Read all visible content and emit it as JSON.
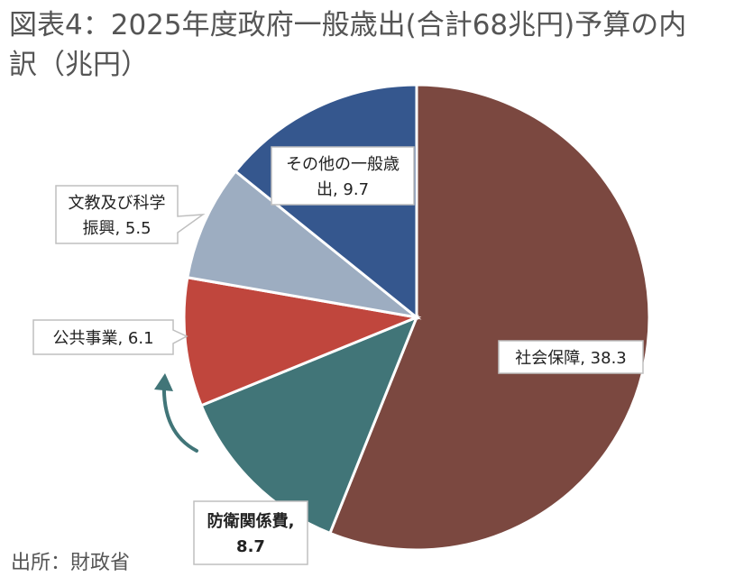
{
  "title_line1": "図表4：2025年度政府一般歳出(合計68兆円)予算の内",
  "title_line2": "訳（兆円）",
  "source": "出所：財政省",
  "colors": {
    "social_security": "#7b4840",
    "defense": "#417578",
    "public_works": "#c0463d",
    "education_science": "#9dadc1",
    "other": "#35578e",
    "arrow": "#417578"
  },
  "chart_data": {
    "type": "pie",
    "title": "図表4：2025年度政府一般歳出(合計68兆円)予算の内訳（兆円）",
    "total": 68,
    "unit": "兆円",
    "start": "12 o'clock, clockwise",
    "slices": [
      {
        "key": "social_security",
        "label_lines": [
          "社会保障, 38.3"
        ],
        "value": 38.3
      },
      {
        "key": "defense",
        "label_lines": [
          "防衛関係費,",
          "8.7"
        ],
        "value": 8.7,
        "highlight": true
      },
      {
        "key": "public_works",
        "label_lines": [
          "公共事業, 6.1"
        ],
        "value": 6.1
      },
      {
        "key": "education_science",
        "label_lines": [
          "文教及び科学",
          "振興, 5.5"
        ],
        "value": 5.5
      },
      {
        "key": "other",
        "label_lines": [
          "その他の一般歳",
          "出, 9.7"
        ],
        "value": 9.7
      }
    ]
  }
}
